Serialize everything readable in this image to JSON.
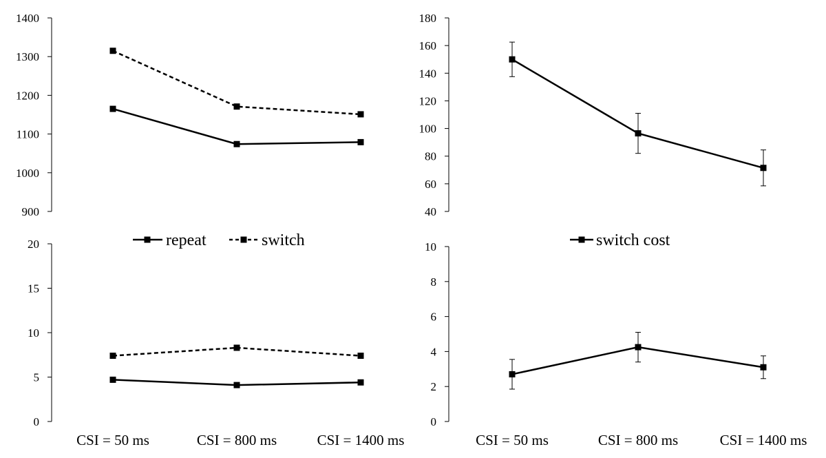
{
  "legends": {
    "left": [
      {
        "label": "repeat",
        "style": "solid"
      },
      {
        "label": "switch",
        "style": "dashed"
      }
    ],
    "right": [
      {
        "label": "switch cost",
        "style": "solid"
      }
    ]
  },
  "categories": [
    "CSI = 50 ms",
    "CSI = 800 ms",
    "CSI = 1400 ms"
  ],
  "chart_data": [
    {
      "id": "top-left",
      "type": "line",
      "categories": [
        "CSI = 50 ms",
        "CSI = 800 ms",
        "CSI = 1400 ms"
      ],
      "ylim": [
        900,
        1400
      ],
      "yticks": [
        900,
        1000,
        1100,
        1200,
        1300,
        1400
      ],
      "series": [
        {
          "name": "repeat",
          "style": "solid",
          "values": [
            1165,
            1074,
            1079
          ]
        },
        {
          "name": "switch",
          "style": "dashed",
          "values": [
            1315,
            1171,
            1151
          ]
        }
      ],
      "show_x_labels": false
    },
    {
      "id": "top-right",
      "type": "line",
      "categories": [
        "CSI = 50 ms",
        "CSI = 800 ms",
        "CSI = 1400 ms"
      ],
      "ylim": [
        40,
        180
      ],
      "yticks": [
        40,
        60,
        80,
        100,
        120,
        140,
        160,
        180
      ],
      "series": [
        {
          "name": "switch cost",
          "style": "solid",
          "values": [
            150,
            96.5,
            71.5
          ],
          "errors": [
            12.5,
            14.5,
            13
          ]
        }
      ],
      "show_x_labels": false
    },
    {
      "id": "bottom-left",
      "type": "line",
      "categories": [
        "CSI = 50 ms",
        "CSI = 800 ms",
        "CSI = 1400 ms"
      ],
      "ylim": [
        0,
        20
      ],
      "yticks": [
        0,
        5,
        10,
        15,
        20
      ],
      "series": [
        {
          "name": "repeat",
          "style": "solid",
          "values": [
            4.7,
            4.1,
            4.4
          ]
        },
        {
          "name": "switch",
          "style": "dashed",
          "values": [
            7.4,
            8.3,
            7.4
          ]
        }
      ],
      "show_x_labels": true
    },
    {
      "id": "bottom-right",
      "type": "line",
      "categories": [
        "CSI = 50 ms",
        "CSI = 800 ms",
        "CSI = 1400 ms"
      ],
      "ylim": [
        0,
        10
      ],
      "yticks": [
        0,
        2,
        4,
        6,
        8,
        10
      ],
      "series": [
        {
          "name": "switch cost",
          "style": "solid",
          "values": [
            2.7,
            4.25,
            3.1
          ],
          "errors": [
            0.85,
            0.85,
            0.65
          ]
        }
      ],
      "show_x_labels": true
    }
  ]
}
